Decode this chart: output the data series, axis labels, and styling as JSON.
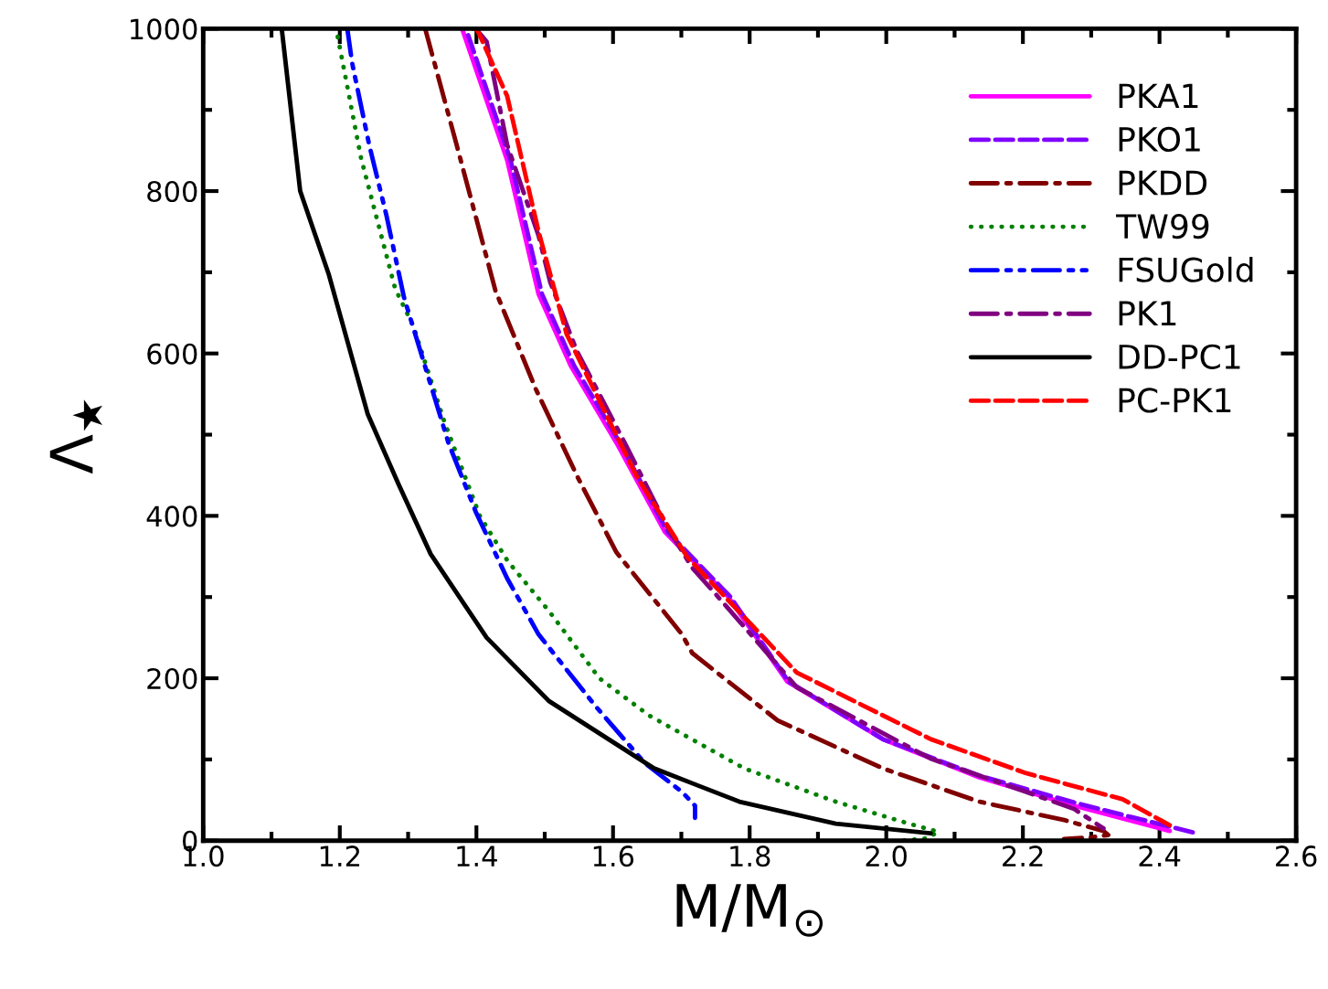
{
  "chart_data": {
    "type": "line",
    "xlabel": "M/M$_{⊙}$",
    "ylabel": "Λ$_{★}$",
    "xlim": [
      1.0,
      2.6
    ],
    "ylim": [
      0,
      1000
    ],
    "xticks": [
      {
        "value": 1.0,
        "label": "1.0"
      },
      {
        "value": 1.2,
        "label": "1.2"
      },
      {
        "value": 1.4,
        "label": "1.4"
      },
      {
        "value": 1.6,
        "label": "1.6"
      },
      {
        "value": 1.8,
        "label": "1.8"
      },
      {
        "value": 2.0,
        "label": "2.0"
      },
      {
        "value": 2.2,
        "label": "2.2"
      },
      {
        "value": 2.4,
        "label": "2.4"
      },
      {
        "value": 2.6,
        "label": "2.6"
      }
    ],
    "yticks": [
      0,
      200,
      400,
      600,
      800,
      1000
    ],
    "grid": false,
    "legend": "top right",
    "marker": "none",
    "series": [
      {
        "name": "PKA1",
        "color": "#ff00ff",
        "line_style": "solid",
        "x": [
          1.379,
          1.445,
          1.491,
          1.538,
          1.605,
          1.676,
          1.768,
          1.855,
          1.995,
          2.136,
          2.275,
          2.415
        ],
        "values": [
          1000,
          838,
          673,
          585,
          490,
          380,
          301,
          196,
          125,
          78,
          43,
          12
        ]
      },
      {
        "name": "PKO1",
        "color": "#8000ff",
        "line_style": "dashed",
        "x": [
          1.388,
          1.45,
          1.496,
          1.543,
          1.61,
          1.68,
          1.771,
          1.857,
          1.995,
          2.136,
          2.275,
          2.359,
          2.45
        ],
        "values": [
          992,
          838,
          673,
          585,
          490,
          380,
          301,
          196,
          125,
          80,
          47,
          29,
          10
        ]
      },
      {
        "name": "PKDD",
        "color": "#800000",
        "line_style": "dashdot",
        "x": [
          1.325,
          1.371,
          1.428,
          1.487,
          1.548,
          1.605,
          1.701,
          1.716,
          1.841,
          1.995,
          2.136,
          2.262,
          2.318,
          2.325,
          2.3,
          2.26
        ],
        "values": [
          1000,
          857,
          677,
          556,
          448,
          355,
          254,
          231,
          148,
          89,
          48,
          25,
          12,
          7,
          4,
          2
        ]
      },
      {
        "name": "TW99",
        "color": "#008000",
        "line_style": "dotted",
        "x": [
          1.197,
          1.231,
          1.281,
          1.308,
          1.353,
          1.405,
          1.446,
          1.506,
          1.58,
          1.653,
          1.792,
          1.926,
          2.037,
          2.076,
          2.06,
          2.023
        ],
        "values": [
          990,
          841,
          680,
          633,
          516,
          400,
          344,
          283,
          200,
          154,
          89,
          48,
          20,
          11,
          3,
          0
        ]
      },
      {
        "name": "FSUGold",
        "color": "#0000ff",
        "line_style": "dashdotdot",
        "x": [
          1.211,
          1.218,
          1.243,
          1.268,
          1.294,
          1.359,
          1.399,
          1.445,
          1.491,
          1.575,
          1.646,
          1.701,
          1.72,
          1.72
        ],
        "values": [
          1000,
          958,
          857,
          771,
          669,
          490,
          405,
          323,
          254,
          165,
          96,
          60,
          43,
          28
        ]
      },
      {
        "name": "PK1",
        "color": "#800080",
        "line_style": "dashdot",
        "x": [
          1.399,
          1.415,
          1.445,
          1.491,
          1.508,
          1.547,
          1.614,
          1.681,
          1.716,
          1.753,
          1.869,
          2.065,
          2.205,
          2.275,
          2.318
        ],
        "values": [
          1000,
          984,
          857,
          745,
          688,
          603,
          495,
          384,
          336,
          301,
          189,
          101,
          60,
          39,
          15
        ]
      },
      {
        "name": "DD-PC1",
        "color": "#000000",
        "line_style": "solid",
        "x": [
          1.115,
          1.142,
          1.184,
          1.241,
          1.286,
          1.333,
          1.415,
          1.506,
          1.66,
          1.785,
          1.926,
          2.065
        ],
        "values": [
          1000,
          800,
          697,
          525,
          439,
          353,
          250,
          172,
          89,
          48,
          21,
          9
        ]
      },
      {
        "name": "PC-PK1",
        "color": "#ff0000",
        "line_style": "dashed",
        "x": [
          1.395,
          1.401,
          1.445,
          1.491,
          1.532,
          1.635,
          1.709,
          1.869,
          2.065,
          2.205,
          2.346,
          2.415
        ],
        "values": [
          1000,
          999,
          917,
          750,
          624,
          448,
          349,
          207,
          125,
          83,
          51,
          19
        ]
      }
    ]
  }
}
